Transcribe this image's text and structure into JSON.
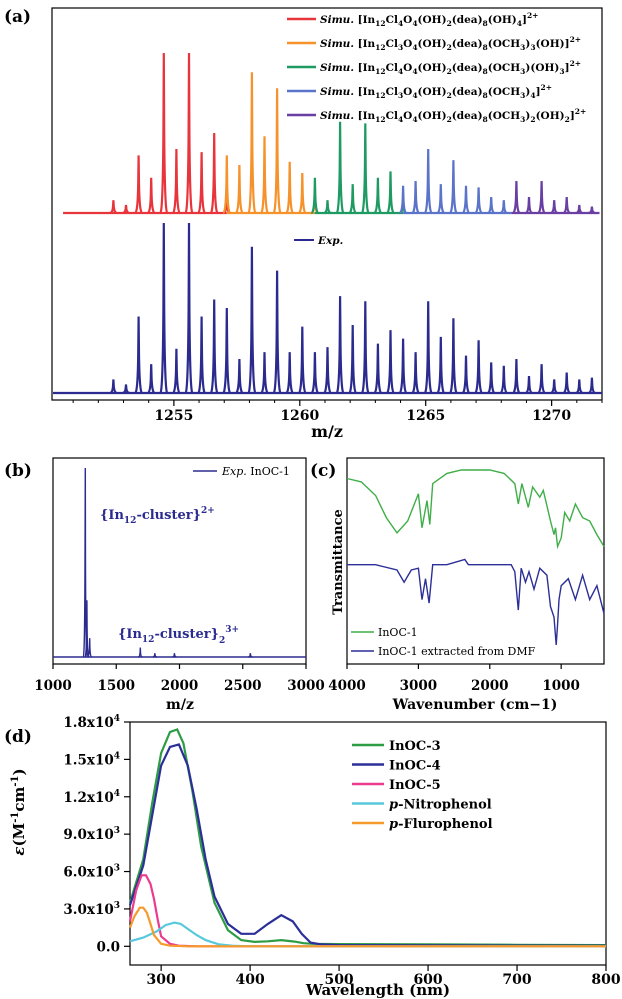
{
  "panel_labels": {
    "a": "(a)",
    "b": "(b)",
    "c": "(c)",
    "d": "(d)"
  },
  "colors": {
    "red": "#e8343b",
    "orange": "#f5922b",
    "green": "#1e9a63",
    "blue": "#5b74c9",
    "purple": "#6a3fa3",
    "navy": "#2b2b8f",
    "ir_green": "#3fae48",
    "d_green": "#2e9c44",
    "d_blue": "#2b2f97",
    "d_pink": "#ec3b8e",
    "d_cyan": "#58c8dc",
    "d_orange": "#f59a2b"
  },
  "chart_data": [
    {
      "id": "a",
      "type": "line",
      "xlabel": "m/z",
      "ylabel": "",
      "xlim": [
        1250.2,
        1272.0
      ],
      "xticks": [
        1255,
        1260,
        1265,
        1270
      ],
      "legend": [
        {
          "prefix": "Simu.",
          "formula": "[In12Cl4O4(OH)2(dea)8(OH)4]2+",
          "color": "#e8343b",
          "parts": [
            [
              "In",
              0
            ],
            [
              "12",
              1
            ],
            [
              "Cl",
              0
            ],
            [
              "4",
              1
            ],
            [
              "O",
              0
            ],
            [
              "4",
              1
            ],
            [
              "(OH)",
              0
            ],
            [
              "2",
              1
            ],
            [
              "(dea)",
              0
            ],
            [
              "8",
              1
            ],
            [
              "(OH)",
              0
            ],
            [
              "4",
              1
            ],
            [
              "]",
              0
            ],
            [
              "2+",
              2
            ]
          ]
        },
        {
          "prefix": "Simu.",
          "formula": "[In12Cl3O4(OH)2(dea)8(OCH3)3(OH)]2+",
          "color": "#f5922b",
          "parts": [
            [
              "In",
              0
            ],
            [
              "12",
              1
            ],
            [
              "Cl",
              0
            ],
            [
              "3",
              1
            ],
            [
              "O",
              0
            ],
            [
              "4",
              1
            ],
            [
              "(OH)",
              0
            ],
            [
              "2",
              1
            ],
            [
              "(dea)",
              0
            ],
            [
              "8",
              1
            ],
            [
              "(OCH",
              0
            ],
            [
              "3",
              1
            ],
            [
              ")",
              0
            ],
            [
              "3",
              1
            ],
            [
              "(OH)]",
              0
            ],
            [
              "2+",
              2
            ]
          ]
        },
        {
          "prefix": "Simu.",
          "formula": "[In12Cl4O4(OH)2(dea)8(OCH3)(OH)3]2+",
          "color": "#1e9a63",
          "parts": [
            [
              "In",
              0
            ],
            [
              "12",
              1
            ],
            [
              "Cl",
              0
            ],
            [
              "4",
              1
            ],
            [
              "O",
              0
            ],
            [
              "4",
              1
            ],
            [
              "(OH)",
              0
            ],
            [
              "2",
              1
            ],
            [
              "(dea)",
              0
            ],
            [
              "8",
              1
            ],
            [
              "(OCH",
              0
            ],
            [
              "3",
              1
            ],
            [
              ")(OH)",
              0
            ],
            [
              "3",
              1
            ],
            [
              "]",
              0
            ],
            [
              "2+",
              2
            ]
          ]
        },
        {
          "prefix": "Simu.",
          "formula": "[In12Cl3O4(OH)2(dea)8(OCH3)4]2+",
          "color": "#5b74c9",
          "parts": [
            [
              "In",
              0
            ],
            [
              "12",
              1
            ],
            [
              "Cl",
              0
            ],
            [
              "3",
              1
            ],
            [
              "O",
              0
            ],
            [
              "4",
              1
            ],
            [
              "(OH)",
              0
            ],
            [
              "2",
              1
            ],
            [
              "(dea)",
              0
            ],
            [
              "8",
              1
            ],
            [
              "(OCH",
              0
            ],
            [
              "3",
              1
            ],
            [
              ")",
              0
            ],
            [
              "4",
              1
            ],
            [
              "]",
              0
            ],
            [
              "2+",
              2
            ]
          ]
        },
        {
          "prefix": "Simu.",
          "formula": "[In12Cl4O4(OH)2(dea)8(OCH3)2(OH)2]2+",
          "color": "#6a3fa3",
          "parts": [
            [
              "In",
              0
            ],
            [
              "12",
              1
            ],
            [
              "Cl",
              0
            ],
            [
              "4",
              1
            ],
            [
              "O",
              0
            ],
            [
              "4",
              1
            ],
            [
              "(OH)",
              0
            ],
            [
              "2",
              1
            ],
            [
              "(dea)",
              0
            ],
            [
              "8",
              1
            ],
            [
              "(OCH",
              0
            ],
            [
              "3",
              1
            ],
            [
              ")",
              0
            ],
            [
              "2",
              1
            ],
            [
              "(OH)",
              0
            ],
            [
              "2",
              1
            ],
            [
              "]",
              0
            ],
            [
              "2+",
              2
            ]
          ]
        }
      ],
      "exp_legend": "Exp.",
      "simulated_peaks": [
        {
          "series": 0,
          "x": [
            1252.6,
            1253.1,
            1253.6,
            1254.1,
            1254.6,
            1255.1,
            1255.6,
            1256.1,
            1256.6,
            1257.1
          ],
          "y": [
            0.08,
            0.05,
            0.36,
            0.22,
            1.0,
            0.4,
            1.0,
            0.38,
            0.5,
            0.1
          ]
        },
        {
          "series": 1,
          "x": [
            1257.1,
            1257.6,
            1258.1,
            1258.6,
            1259.1,
            1259.6,
            1260.1,
            1260.6
          ],
          "y": [
            0.36,
            0.3,
            0.88,
            0.48,
            0.78,
            0.32,
            0.25,
            0.12
          ]
        },
        {
          "series": 2,
          "x": [
            1260.6,
            1261.1,
            1261.6,
            1262.1,
            1262.6,
            1263.1,
            1263.6,
            1264.1
          ],
          "y": [
            0.22,
            0.08,
            0.57,
            0.18,
            0.56,
            0.22,
            0.26,
            0.08
          ]
        },
        {
          "series": 3,
          "x": [
            1264.1,
            1264.6,
            1265.1,
            1265.6,
            1266.1,
            1266.6,
            1267.1,
            1267.6,
            1268.1
          ],
          "y": [
            0.17,
            0.2,
            0.4,
            0.18,
            0.33,
            0.17,
            0.16,
            0.1,
            0.08
          ]
        },
        {
          "series": 4,
          "x": [
            1268.6,
            1269.1,
            1269.6,
            1270.1,
            1270.6,
            1271.1,
            1271.6
          ],
          "y": [
            0.2,
            0.1,
            0.2,
            0.08,
            0.1,
            0.05,
            0.04
          ]
        }
      ],
      "experimental_peaks": {
        "x": [
          1252.6,
          1253.1,
          1253.6,
          1254.1,
          1254.6,
          1255.1,
          1255.6,
          1256.1,
          1256.6,
          1257.1,
          1257.6,
          1258.1,
          1258.6,
          1259.1,
          1259.6,
          1260.1,
          1260.6,
          1261.1,
          1261.6,
          1262.1,
          1262.6,
          1263.1,
          1263.6,
          1264.1,
          1264.6,
          1265.1,
          1265.6,
          1266.1,
          1266.6,
          1267.1,
          1267.6,
          1268.1,
          1268.6,
          1269.1,
          1269.6,
          1270.1,
          1270.6,
          1271.1,
          1271.6
        ],
        "y": [
          0.08,
          0.05,
          0.45,
          0.17,
          1.0,
          0.26,
          1.0,
          0.45,
          0.55,
          0.5,
          0.2,
          0.86,
          0.24,
          0.72,
          0.24,
          0.39,
          0.24,
          0.27,
          0.57,
          0.4,
          0.54,
          0.29,
          0.37,
          0.32,
          0.24,
          0.54,
          0.33,
          0.44,
          0.22,
          0.31,
          0.18,
          0.16,
          0.2,
          0.1,
          0.17,
          0.08,
          0.12,
          0.08,
          0.09
        ]
      }
    },
    {
      "id": "b",
      "type": "line",
      "xlabel": "m/z",
      "xlim": [
        1000,
        3000
      ],
      "xticks": [
        1000,
        1500,
        2000,
        2500,
        3000
      ],
      "legend": [
        {
          "prefix": "Exp.",
          "name": "InOC-1",
          "color": "#2b2b8f"
        }
      ],
      "annotations": [
        {
          "base": "{In",
          "sub": "12",
          "rest": "-cluster}",
          "sup": "2+",
          "x": 1270,
          "y": 0.62
        },
        {
          "base": "{In",
          "sub": "12",
          "rest": "-cluster}",
          "sub2": "2",
          "sup": "3+",
          "x": 1690,
          "y": 0.14
        }
      ],
      "peaks": {
        "x": [
          1255,
          1268,
          1290,
          1690,
          1805,
          1960,
          2560
        ],
        "y": [
          1.0,
          0.3,
          0.1,
          0.05,
          0.02,
          0.02,
          0.02
        ]
      }
    },
    {
      "id": "c",
      "type": "line",
      "xlabel": "Wavenumber (cm−1)",
      "ylabel": "Transmittance",
      "xlim": [
        4000,
        400
      ],
      "xticks": [
        4000,
        3000,
        2000,
        1000
      ],
      "series": [
        {
          "name": "InOC-1",
          "color": "#3fae48",
          "x": [
            4000,
            3800,
            3600,
            3450,
            3300,
            3150,
            3000,
            2950,
            2880,
            2840,
            2800,
            2600,
            2400,
            2300,
            2000,
            1800,
            1650,
            1600,
            1550,
            1460,
            1400,
            1300,
            1250,
            1150,
            1100,
            1080,
            1050,
            1000,
            950,
            880,
            800,
            700,
            600,
            500,
            400
          ],
          "y": [
            0.95,
            0.93,
            0.85,
            0.72,
            0.63,
            0.7,
            0.86,
            0.66,
            0.82,
            0.68,
            0.92,
            0.98,
            1.0,
            1.0,
            1.0,
            0.98,
            0.92,
            0.8,
            0.92,
            0.78,
            0.9,
            0.84,
            0.88,
            0.7,
            0.62,
            0.66,
            0.55,
            0.6,
            0.75,
            0.7,
            0.8,
            0.72,
            0.7,
            0.62,
            0.55
          ]
        },
        {
          "name": "InOC-1 extracted from DMF",
          "color": "#2b2f97",
          "x": [
            4000,
            3600,
            3300,
            3200,
            3100,
            3000,
            2950,
            2900,
            2850,
            2800,
            2600,
            2350,
            2300,
            2000,
            1700,
            1650,
            1600,
            1560,
            1500,
            1450,
            1380,
            1300,
            1200,
            1150,
            1100,
            1070,
            1050,
            1030,
            1000,
            900,
            800,
            700,
            600,
            500,
            400
          ],
          "y": [
            0.5,
            0.5,
            0.47,
            0.4,
            0.47,
            0.48,
            0.3,
            0.42,
            0.28,
            0.5,
            0.5,
            0.53,
            0.5,
            0.5,
            0.5,
            0.46,
            0.24,
            0.48,
            0.4,
            0.46,
            0.36,
            0.48,
            0.44,
            0.26,
            0.2,
            0.04,
            0.16,
            0.3,
            0.38,
            0.42,
            0.3,
            0.44,
            0.3,
            0.38,
            0.22
          ]
        }
      ]
    },
    {
      "id": "d",
      "type": "line",
      "xlabel": "Wavelength (nm)",
      "ylabel_sym": "ε",
      "ylabel_unit_a": "(M",
      "ylabel_sup1": "-1",
      "ylabel_unit_b": "cm",
      "ylabel_sup2": "-1",
      "ylabel_close": ")",
      "xlim": [
        265,
        800
      ],
      "ylim": [
        -1500,
        18000
      ],
      "xticks": [
        300,
        400,
        500,
        600,
        700,
        800
      ],
      "yticks": [
        0,
        3000,
        6000,
        9000,
        12000,
        15000,
        18000
      ],
      "ytick_labels": [
        {
          "base": "0.0",
          "sup": ""
        },
        {
          "base": "3.0x10",
          "sup": "3"
        },
        {
          "base": "6.0x10",
          "sup": "3"
        },
        {
          "base": "9.0x10",
          "sup": "3"
        },
        {
          "base": "1.2x10",
          "sup": "4"
        },
        {
          "base": "1.5x10",
          "sup": "4"
        },
        {
          "base": "1.8x10",
          "sup": "4"
        }
      ],
      "series": [
        {
          "name": "InOC-3",
          "italic_prefix": "",
          "color": "#2e9c44",
          "x": [
            265,
            280,
            290,
            300,
            310,
            318,
            325,
            335,
            345,
            360,
            375,
            390,
            405,
            420,
            435,
            450,
            460,
            470,
            500,
            600,
            700,
            800
          ],
          "y": [
            3500,
            7000,
            11500,
            15500,
            17200,
            17400,
            16300,
            12500,
            8000,
            3500,
            1300,
            500,
            350,
            400,
            500,
            380,
            250,
            200,
            180,
            150,
            120,
            100
          ]
        },
        {
          "name": "InOC-4",
          "italic_prefix": "",
          "color": "#2b2f97",
          "x": [
            265,
            280,
            290,
            300,
            310,
            320,
            330,
            340,
            350,
            360,
            375,
            390,
            405,
            420,
            435,
            448,
            458,
            468,
            480,
            500,
            600,
            700,
            800
          ],
          "y": [
            3300,
            6500,
            10500,
            14500,
            16000,
            16200,
            14500,
            11000,
            7000,
            4000,
            1800,
            1000,
            1000,
            1800,
            2500,
            2000,
            1000,
            300,
            150,
            100,
            80,
            60,
            50
          ]
        },
        {
          "name": "InOC-5",
          "italic_prefix": "",
          "color": "#ec3b8e",
          "x": [
            265,
            272,
            278,
            283,
            288,
            292,
            296,
            300,
            310,
            320,
            340,
            400,
            500,
            600,
            800
          ],
          "y": [
            2000,
            4500,
            5700,
            5700,
            5000,
            3800,
            2200,
            800,
            200,
            50,
            0,
            0,
            0,
            0,
            0
          ]
        },
        {
          "name": "-Nitrophenol",
          "italic_prefix": "p",
          "color": "#58c8dc",
          "x": [
            265,
            280,
            295,
            305,
            315,
            322,
            330,
            340,
            350,
            365,
            380,
            400,
            500,
            600,
            800
          ],
          "y": [
            400,
            700,
            1200,
            1700,
            1900,
            1800,
            1400,
            900,
            500,
            150,
            50,
            0,
            0,
            0,
            0
          ]
        },
        {
          "name": "-Flurophenol",
          "italic_prefix": "p",
          "color": "#f59a2b",
          "x": [
            265,
            270,
            276,
            280,
            284,
            288,
            292,
            300,
            310,
            330,
            400,
            500,
            600,
            800
          ],
          "y": [
            1500,
            2400,
            3100,
            3100,
            2700,
            1800,
            900,
            200,
            50,
            0,
            0,
            0,
            0,
            0
          ]
        }
      ]
    }
  ]
}
